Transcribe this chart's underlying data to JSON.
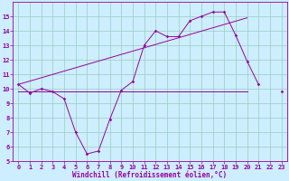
{
  "xlabel": "Windchill (Refroidissement éolien,°C)",
  "background_color": "#cceeff",
  "grid_color": "#99ccbb",
  "line_color": "#990099",
  "x_values": [
    0,
    1,
    2,
    3,
    4,
    5,
    6,
    7,
    8,
    9,
    10,
    11,
    12,
    13,
    14,
    15,
    16,
    17,
    18,
    19,
    20,
    21,
    22,
    23
  ],
  "line1_y": [
    10.3,
    9.7,
    10.0,
    9.8,
    9.3,
    7.0,
    5.5,
    5.7,
    7.9,
    9.9,
    10.5,
    13.0,
    14.0,
    13.6,
    13.6,
    14.7,
    15.0,
    15.3,
    15.3,
    13.7,
    11.9,
    10.3,
    null,
    9.8
  ],
  "line2_y": [
    10.3,
    null,
    null,
    null,
    null,
    null,
    null,
    null,
    null,
    null,
    null,
    null,
    null,
    null,
    null,
    null,
    null,
    null,
    null,
    null,
    14.9,
    null,
    null,
    9.8
  ],
  "line3_y": [
    9.8,
    9.8,
    9.8,
    9.8,
    9.8,
    9.8,
    9.8,
    9.8,
    9.8,
    9.8,
    9.8,
    9.8,
    9.8,
    9.8,
    9.8,
    9.8,
    9.8,
    9.8,
    9.8,
    9.8,
    9.8,
    null,
    null,
    null
  ],
  "trend_x": [
    0,
    20
  ],
  "trend_y": [
    10.3,
    14.9
  ],
  "ylim": [
    5,
    16
  ],
  "xlim": [
    -0.5,
    23.5
  ],
  "yticks": [
    5,
    6,
    7,
    8,
    9,
    10,
    11,
    12,
    13,
    14,
    15
  ],
  "xticks": [
    0,
    1,
    2,
    3,
    4,
    5,
    6,
    7,
    8,
    9,
    10,
    11,
    12,
    13,
    14,
    15,
    16,
    17,
    18,
    19,
    20,
    21,
    22,
    23
  ],
  "xlabel_fontsize": 5.5,
  "tick_fontsize": 5.0
}
